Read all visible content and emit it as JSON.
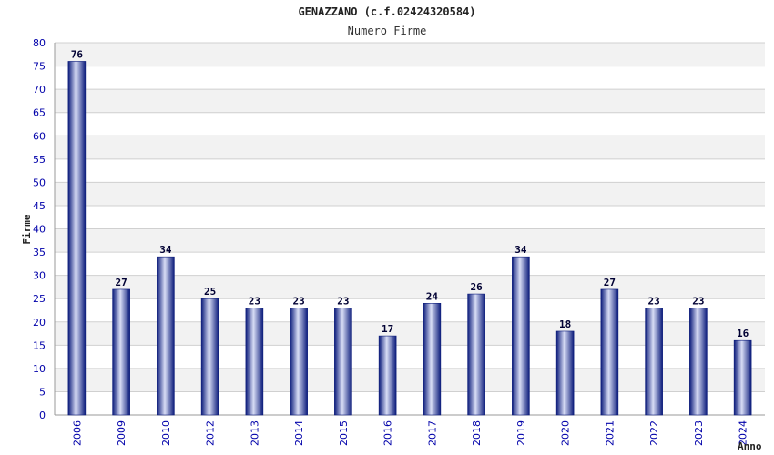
{
  "chart_data": {
    "type": "bar",
    "title": "GENAZZANO (c.f.02424320584)",
    "subtitle": "Numero Firme",
    "ylabel": "Firme",
    "xlabel": "Anno",
    "categories": [
      "2006",
      "2009",
      "2010",
      "2012",
      "2013",
      "2014",
      "2015",
      "2016",
      "2017",
      "2018",
      "2019",
      "2020",
      "2021",
      "2022",
      "2023",
      "2024"
    ],
    "values": [
      76,
      27,
      34,
      25,
      23,
      23,
      23,
      17,
      24,
      26,
      34,
      18,
      27,
      23,
      23,
      16
    ],
    "ylim": [
      0,
      80
    ],
    "ytick_step": 5,
    "grid": true,
    "colors": {
      "bar_dark": "#0a1a7a",
      "bar_light": "#d8ddf5",
      "band_alt": "#f2f2f2",
      "grid": "#d0d0d0",
      "tick_text": "#0000aa"
    }
  }
}
